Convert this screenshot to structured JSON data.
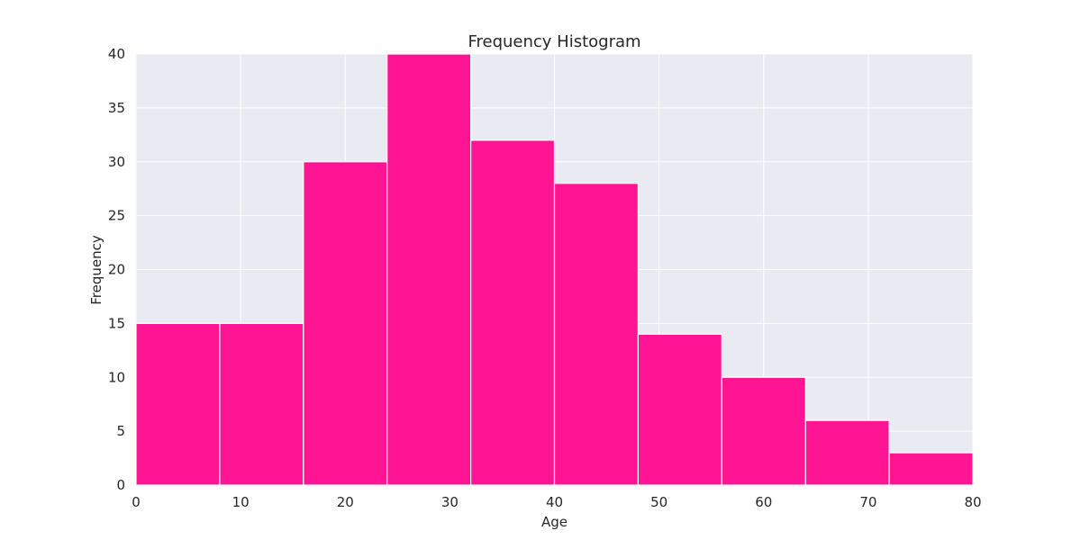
{
  "chart_data": {
    "type": "bar",
    "title": "Frequency Histogram",
    "xlabel": "Age",
    "ylabel": "Frequency",
    "bin_edges": [
      0,
      8,
      16,
      24,
      32,
      40,
      48,
      56,
      64,
      72,
      80
    ],
    "values": [
      15,
      15,
      30,
      40,
      32,
      28,
      14,
      10,
      6,
      3
    ],
    "xlim": [
      0,
      80
    ],
    "ylim": [
      0,
      40
    ],
    "x_ticks": [
      0,
      10,
      20,
      30,
      40,
      50,
      60,
      70,
      80
    ],
    "y_ticks": [
      0,
      5,
      10,
      15,
      20,
      25,
      30,
      35,
      40
    ],
    "grid": true,
    "legend": "none",
    "colors": {
      "bar": "#ff1493",
      "plot_background": "#eaeaf2",
      "grid": "#ffffff",
      "bar_edge": "#ffffff"
    }
  }
}
